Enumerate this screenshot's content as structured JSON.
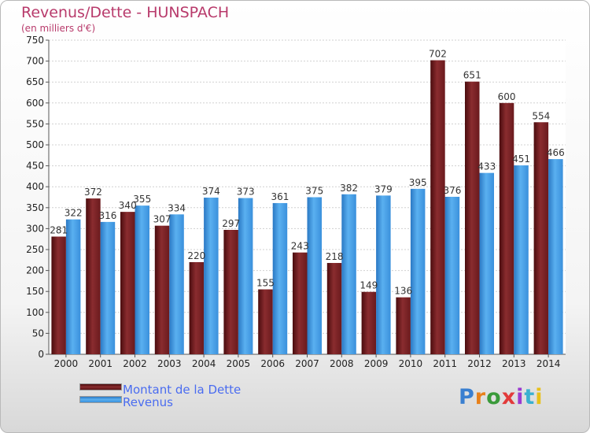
{
  "title": "Revenus/Dette - HUNSPACH",
  "subtitle": "(en milliers d'€)",
  "logo": {
    "text": "Proxiti",
    "colors": [
      "#3a7fd0",
      "#e8801a",
      "#3a9a3a",
      "#e23a3a",
      "#9a3ad0",
      "#3ab0d0",
      "#e8c01a"
    ]
  },
  "colors": {
    "dette": "#7b1f22",
    "revenus": "#3a8fd8"
  },
  "chart_data": {
    "type": "bar",
    "title": "Revenus/Dette - HUNSPACH",
    "ylabel": "(en milliers d'€)",
    "categories": [
      "2000",
      "2001",
      "2002",
      "2003",
      "2004",
      "2005",
      "2006",
      "2007",
      "2008",
      "2009",
      "2010",
      "2011",
      "2012",
      "2013",
      "2014"
    ],
    "series": [
      {
        "name": "Montant de la Dette",
        "values": [
          281,
          372,
          340,
          307,
          220,
          297,
          155,
          243,
          218,
          149,
          136,
          702,
          651,
          600,
          554
        ]
      },
      {
        "name": "Revenus",
        "values": [
          322,
          316,
          355,
          334,
          374,
          373,
          361,
          375,
          382,
          379,
          395,
          376,
          433,
          451,
          466
        ]
      }
    ],
    "ylim": [
      0,
      750
    ],
    "yticks": [
      0,
      50,
      100,
      150,
      200,
      250,
      300,
      350,
      400,
      450,
      500,
      550,
      600,
      650,
      700,
      750
    ],
    "grid": true,
    "legend": "bottom-left"
  }
}
